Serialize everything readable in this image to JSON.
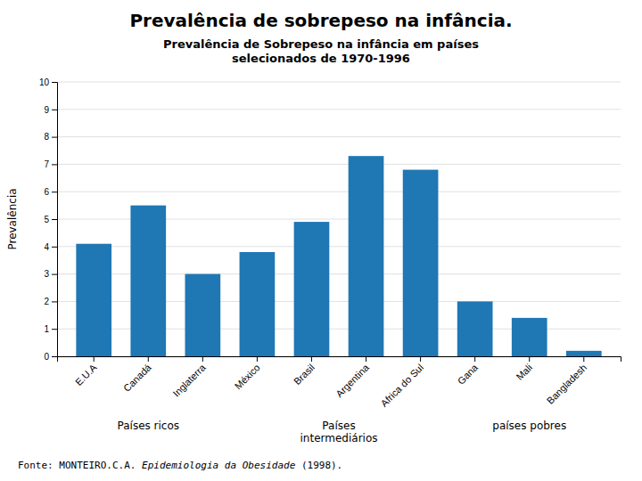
{
  "chart_data": {
    "type": "bar",
    "title": "Prevalência de sobrepeso na infância.",
    "subtitle": [
      "Prevalência de Sobrepeso na infância em países",
      "selecionados de 1970-1996"
    ],
    "categories": [
      "E.U.A",
      "Canadá",
      "Inglaterra",
      "México",
      "Brasil",
      "Argentina",
      "Africa do Sul",
      "Gana",
      "Mali",
      "Bangladesh"
    ],
    "values": [
      4.1,
      5.5,
      3.0,
      3.8,
      4.9,
      7.3,
      6.8,
      2.0,
      1.4,
      0.2
    ],
    "ylabel": "Prevalência",
    "ylim": [
      0,
      10
    ],
    "yticks": [
      0,
      1,
      2,
      3,
      4,
      5,
      6,
      7,
      8,
      9,
      10
    ],
    "grid": true,
    "annotations": [
      {
        "text": "Países ricos",
        "from": "E.U.A",
        "to": "Inglaterra"
      },
      {
        "text": "Países\nintermediários",
        "from": "México",
        "to": "Africa do Sul"
      },
      {
        "text": "países pobres",
        "from": "Gana",
        "to": "Bangladesh"
      }
    ],
    "source": [
      "Fonte: MONTEIRO.C.A. ",
      "Epidemiologia da Obesidade",
      " (1998)."
    ]
  }
}
